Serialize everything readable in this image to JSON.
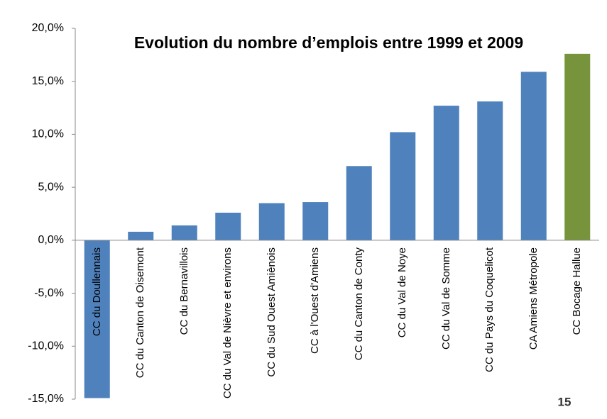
{
  "chart_data": {
    "type": "bar",
    "title": "Evolution du nombre d’emplois entre 1999 et 2009",
    "categories": [
      "CC du Doullennais",
      "CC du Canton de Oisemont",
      "CC du Bernavillois",
      "CC du Val de Nièvre et environs",
      "CC du Sud Ouest Amiènois",
      "CC à l'Ouest d'Amiens",
      "CC du Canton de Conty",
      "CC du Val de Noye",
      "CC du Val de Somme",
      "CC du Pays du Coquelicot",
      "CA Amiens Métropole",
      "CC Bocage Hallue"
    ],
    "values": [
      -14.9,
      0.8,
      1.4,
      2.6,
      3.5,
      3.6,
      7.0,
      10.2,
      12.7,
      13.1,
      15.9,
      17.6
    ],
    "colors": [
      "#4f81bd",
      "#4f81bd",
      "#4f81bd",
      "#4f81bd",
      "#4f81bd",
      "#4f81bd",
      "#4f81bd",
      "#4f81bd",
      "#4f81bd",
      "#4f81bd",
      "#4f81bd",
      "#77933c"
    ],
    "ylim": [
      -15,
      20
    ],
    "yticks": [
      {
        "value": -15,
        "label": "-15,0%"
      },
      {
        "value": -10,
        "label": "-10,0%"
      },
      {
        "value": -5,
        "label": "-5,0%"
      },
      {
        "value": 0,
        "label": "0,0%"
      },
      {
        "value": 5,
        "label": "5,0%"
      },
      {
        "value": 10,
        "label": "10,0%"
      },
      {
        "value": 15,
        "label": "15,0%"
      },
      {
        "value": 20,
        "label": "20,0%"
      }
    ],
    "grid": false,
    "page_number": "15"
  }
}
